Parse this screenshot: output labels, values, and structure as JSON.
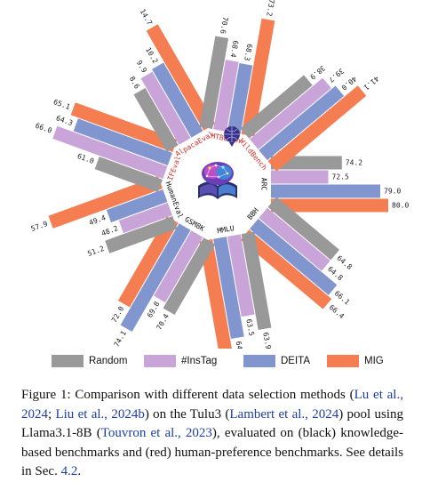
{
  "chart_data": {
    "type": "bar",
    "polar": true,
    "series": [
      {
        "name": "Random",
        "color": "#999999"
      },
      {
        "name": "#InsTag",
        "color": "#c9a4d9"
      },
      {
        "name": "DEITA",
        "color": "#8196cf"
      },
      {
        "name": "MIG",
        "color": "#f47d52"
      }
    ],
    "categories": [
      {
        "name": "ARC",
        "type": "knowledge",
        "values": [
          74.2,
          72.5,
          79.0,
          80.0
        ],
        "values_label": [
          "74.2",
          "72.5",
          "79.0",
          "80.0"
        ],
        "range": [
          70,
          80
        ]
      },
      {
        "name": "BBH",
        "type": "knowledge",
        "values": [
          64.8,
          64.8,
          66.1,
          66.4
        ],
        "values_label": [
          "64.8",
          "64.8",
          "66.1",
          "66.4"
        ],
        "range": [
          62,
          67
        ]
      },
      {
        "name": "MMLU",
        "type": "knowledge",
        "values": [
          63.9,
          63.5,
          64.0,
          64.4
        ],
        "values_label": [
          "63.9",
          "63.5",
          "64.0",
          "64.4"
        ],
        "range": [
          62.4,
          64.4
        ]
      },
      {
        "name": "GSM8K",
        "type": "knowledge",
        "values": [
          70.4,
          69.8,
          74.1,
          72.0
        ],
        "values_label": [
          "70.4",
          "69.8",
          "74.1",
          "72.0"
        ],
        "range": [
          66,
          74
        ]
      },
      {
        "name": "HumanEval",
        "type": "knowledge",
        "values": [
          51.2,
          48.2,
          49.4,
          57.9
        ],
        "values_label": [
          "51.2",
          "48.2",
          "49.4",
          "57.9"
        ],
        "range": [
          46,
          58
        ]
      },
      {
        "name": "IFEval",
        "type": "preference",
        "values": [
          61.0,
          66.0,
          64.3,
          65.1
        ],
        "values_label": [
          "61.0",
          "66.0",
          "64.3",
          "65.1"
        ],
        "range": [
          58,
          66
        ]
      },
      {
        "name": "AlpacaEval",
        "type": "preference",
        "values": [
          8.6,
          9.9,
          10.2,
          14.7
        ],
        "values_label": [
          "8.6",
          "9.9",
          "10.2",
          "14.7"
        ],
        "range": [
          5,
          15
        ]
      },
      {
        "name": "MTBench",
        "type": "preference",
        "values": [
          70.6,
          68.4,
          68.3,
          73.2
        ],
        "values_label": [
          "70.6",
          "68.4",
          "68.3",
          "73.2"
        ],
        "range": [
          65,
          73.2
        ]
      },
      {
        "name": "WildBench",
        "type": "preference",
        "values": [
          38.9,
          39.7,
          40.0,
          41.1
        ],
        "values_label": [
          "38.9",
          "39.7",
          "40.0",
          "41.1"
        ],
        "range": [
          36,
          41.1
        ]
      }
    ],
    "label_colors": {
      "knowledge": "#111111",
      "preference": "#d0302b"
    }
  },
  "caption": {
    "parts": [
      {
        "text": "Figure 1:  Comparison with different data selection methods (",
        "cite": false
      },
      {
        "text": "Lu et al., 2024",
        "cite": true
      },
      {
        "text": "; ",
        "cite": false
      },
      {
        "text": "Liu et al., 2024b",
        "cite": true
      },
      {
        "text": ") on the Tulu3 (",
        "cite": false
      },
      {
        "text": "Lambert et al., 2024",
        "cite": true
      },
      {
        "text": ") pool using Llama3.1-8B (",
        "cite": false
      },
      {
        "text": "Touvron et al., 2023",
        "cite": true
      },
      {
        "text": "), evaluated on (black) knowledge-based benchmarks and (red) human-preference benchmarks. See details in Sec. ",
        "cite": false
      },
      {
        "text": "4.2",
        "cite": true
      },
      {
        "text": ".",
        "cite": false
      }
    ]
  }
}
